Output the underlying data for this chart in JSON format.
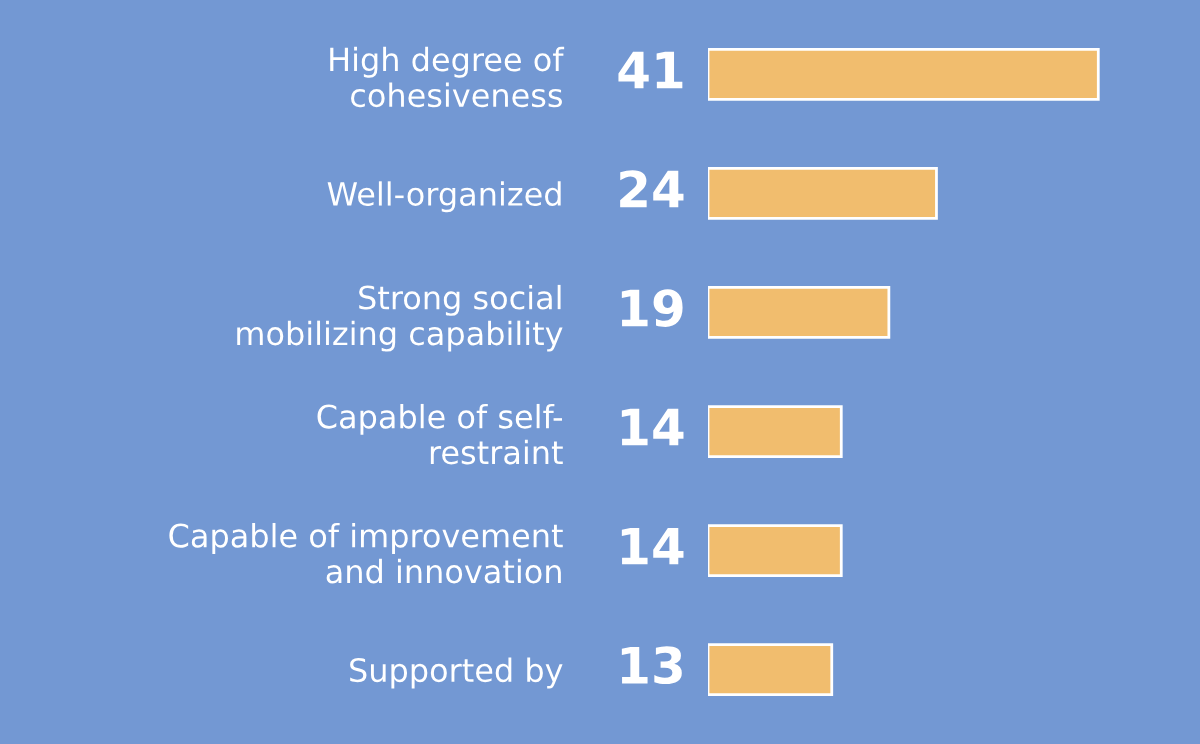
{
  "chart_data": {
    "type": "bar",
    "orientation": "horizontal",
    "categories": [
      "High degree of\ncohesiveness",
      "Well-organized",
      "Strong social\nmobilizing capability",
      "Capable of self-\nrestraint",
      "Capable of improvement\nand innovation",
      "Supported by"
    ],
    "values": [
      41,
      24,
      19,
      14,
      14,
      13
    ],
    "color": "#f1bd6e",
    "data_labels": true
  }
}
